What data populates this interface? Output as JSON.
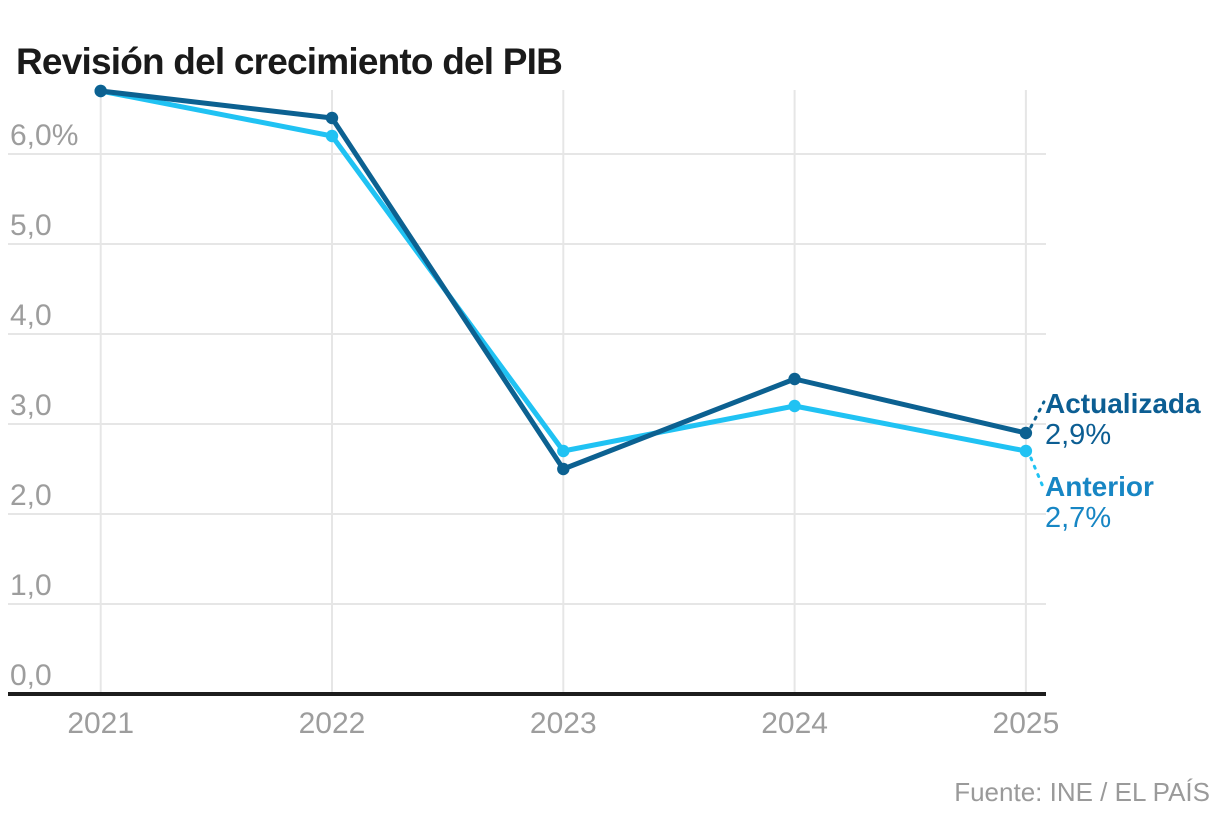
{
  "title": "Revisión del crecimiento del PIB",
  "source": "Fuente: INE / EL PAÍS",
  "chart_data": {
    "type": "line",
    "categories": [
      "2021",
      "2022",
      "2023",
      "2024",
      "2025"
    ],
    "series": [
      {
        "name": "Actualizada",
        "values": [
          6.7,
          6.4,
          2.5,
          3.5,
          2.9
        ],
        "end_label": "2,9%",
        "color": "#0c6191",
        "label_color": "#0c5e93",
        "annotation_side": "up"
      },
      {
        "name": "Anterior",
        "values": [
          6.7,
          6.2,
          2.7,
          3.2,
          2.7
        ],
        "end_label": "2,7%",
        "color": "#20c2f3",
        "label_color": "#1786c4",
        "annotation_side": "down"
      }
    ],
    "xlabel": "",
    "ylabel": "",
    "ylim": [
      0,
      6.9
    ],
    "yticks": [
      {
        "value": 6,
        "label": "6,0%"
      },
      {
        "value": 5,
        "label": "5,0"
      },
      {
        "value": 4,
        "label": "4,0"
      },
      {
        "value": 3,
        "label": "3,0"
      },
      {
        "value": 2,
        "label": "2,0"
      },
      {
        "value": 1,
        "label": "1,0"
      },
      {
        "value": 0,
        "label": "0,0"
      }
    ],
    "grid": true,
    "legend_position": "right-annotations"
  }
}
